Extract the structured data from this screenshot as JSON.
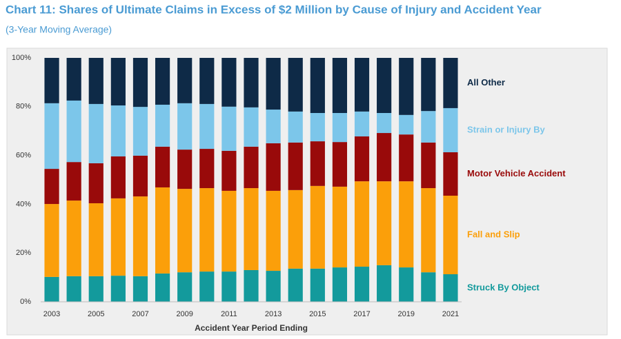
{
  "chart_data": {
    "type": "stacked_bar",
    "title": "Chart 11: Shares of Ultimate Claims in Excess of $2 Million by Cause of Injury and Accident Year",
    "subtitle": "(3-Year Moving Average)",
    "x_label": "Accident Year Period Ending",
    "categories": [
      "2003",
      null,
      "2005",
      null,
      "2007",
      null,
      "2009",
      null,
      "2011",
      null,
      "2013",
      null,
      "2015",
      null,
      "2017",
      null,
      "2019",
      null,
      "2021"
    ],
    "series": [
      {
        "name": "Struck By Object",
        "color": "#139a9c",
        "values": [
          10.2,
          10.5,
          10.5,
          10.7,
          10.5,
          11.6,
          12.1,
          12.4,
          12.4,
          13.0,
          12.7,
          13.6,
          13.6,
          14.1,
          14.4,
          15.0,
          14.1,
          12.1,
          11.3
        ]
      },
      {
        "name": "Fall and Slip",
        "color": "#fb9f0a",
        "values": [
          29.9,
          31.0,
          29.9,
          31.7,
          32.7,
          35.3,
          34.2,
          34.2,
          33.1,
          33.6,
          32.8,
          32.2,
          33.9,
          33.1,
          35.0,
          34.4,
          35.3,
          34.5,
          32.2
        ]
      },
      {
        "name": "Motor Vehicle Accident",
        "color": "#990a0a",
        "values": [
          14.4,
          15.8,
          16.4,
          17.2,
          16.7,
          16.7,
          16.1,
          16.1,
          16.4,
          17.0,
          19.5,
          19.5,
          18.3,
          18.3,
          18.4,
          19.8,
          19.2,
          18.7,
          17.8
        ]
      },
      {
        "name": "Strain or Injury By",
        "color": "#7cc6ea",
        "values": [
          26.9,
          25.2,
          24.3,
          20.9,
          20.0,
          17.2,
          19.0,
          18.4,
          18.1,
          16.1,
          13.8,
          12.7,
          11.6,
          11.9,
          10.2,
          8.2,
          8.0,
          12.9,
          18.1
        ]
      },
      {
        "name": "All Other",
        "color": "#0e2a47",
        "values": [
          18.6,
          17.5,
          18.9,
          19.5,
          20.1,
          19.2,
          18.6,
          18.9,
          20.0,
          20.3,
          21.2,
          22.0,
          22.6,
          22.6,
          22.0,
          22.6,
          23.4,
          21.8,
          20.6
        ]
      }
    ],
    "ylim": [
      0,
      100
    ],
    "yticks": [
      {
        "value": 0,
        "label": "0%"
      },
      {
        "value": 20,
        "label": "20%"
      },
      {
        "value": 40,
        "label": "40%"
      },
      {
        "value": 60,
        "label": "60%"
      },
      {
        "value": 80,
        "label": "80%"
      },
      {
        "value": 100,
        "label": "100%"
      }
    ],
    "grid": false
  }
}
